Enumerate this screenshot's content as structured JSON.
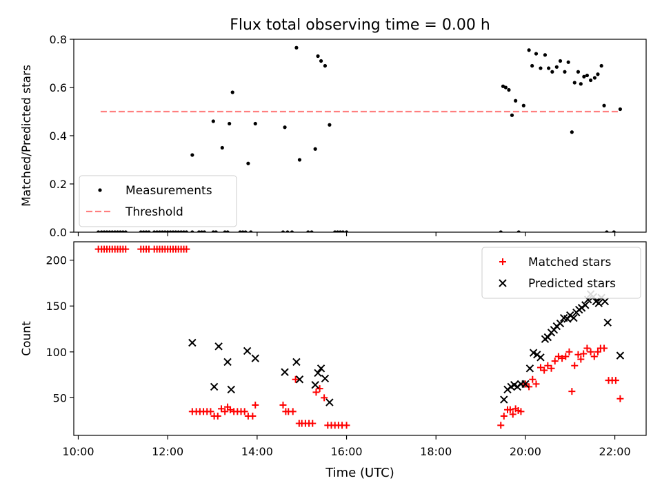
{
  "chart_data": {
    "title": "Flux total observing time = 0.00 h",
    "xlabel": "Time (UTC)",
    "xlim": [
      9.9,
      22.7
    ],
    "xticks": [
      {
        "v": 10,
        "label": "10:00"
      },
      {
        "v": 12,
        "label": "12:00"
      },
      {
        "v": 14,
        "label": "14:00"
      },
      {
        "v": 16,
        "label": "16:00"
      },
      {
        "v": 18,
        "label": "18:00"
      },
      {
        "v": 20,
        "label": "20:00"
      },
      {
        "v": 22,
        "label": "22:00"
      }
    ],
    "panels": [
      {
        "type": "scatter",
        "ylabel": "Matched/Predicted stars",
        "ylim": [
          0,
          0.8
        ],
        "yticks": [
          {
            "v": 0,
            "label": "0.0"
          },
          {
            "v": 0.2,
            "label": "0.2"
          },
          {
            "v": 0.4,
            "label": "0.4"
          },
          {
            "v": 0.6,
            "label": "0.6"
          },
          {
            "v": 0.8,
            "label": "0.8"
          }
        ],
        "legend_position": "lower-left",
        "series": [
          {
            "name": "Measurements",
            "marker": "dot",
            "color": "#000000",
            "x": [
              10.45,
              10.52,
              10.58,
              10.64,
              10.7,
              10.76,
              10.82,
              10.88,
              10.94,
              11.0,
              11.06,
              11.4,
              11.46,
              11.52,
              11.58,
              11.7,
              11.76,
              11.82,
              11.88,
              11.94,
              12.0,
              12.06,
              12.12,
              12.18,
              12.24,
              12.3,
              12.36,
              12.42,
              12.55,
              12.7,
              12.76,
              12.82,
              13.02,
              13.08,
              13.28,
              13.34,
              13.62,
              13.68,
              13.74,
              13.86,
              14.58,
              14.68,
              14.78,
              15.14,
              15.22,
              15.74,
              15.8,
              15.86,
              15.92,
              16.0,
              12.55,
              13.02,
              13.22,
              13.38,
              13.45,
              13.8,
              13.96,
              14.62,
              14.88,
              14.95,
              15.3,
              15.36,
              15.43,
              15.52,
              15.62,
              19.45,
              19.5,
              19.56,
              19.63,
              19.7,
              19.78,
              19.85,
              19.96,
              20.08,
              20.15,
              20.24,
              20.34,
              20.44,
              20.52,
              20.6,
              20.7,
              20.78,
              20.88,
              20.96,
              21.04,
              21.1,
              21.18,
              21.24,
              21.31,
              21.38,
              21.46,
              21.55,
              21.62,
              21.7,
              21.76,
              21.82,
              21.98,
              22.12
            ],
            "y": [
              0,
              0,
              0,
              0,
              0,
              0,
              0,
              0,
              0,
              0,
              0,
              0,
              0,
              0,
              0,
              0,
              0,
              0,
              0,
              0,
              0,
              0,
              0,
              0,
              0,
              0,
              0,
              0,
              0,
              0,
              0,
              0,
              0,
              0,
              0,
              0,
              0,
              0,
              0,
              0,
              0,
              0,
              0,
              0,
              0,
              0,
              0,
              0,
              0,
              0,
              0.32,
              0.46,
              0.35,
              0.45,
              0.58,
              0.285,
              0.45,
              0.435,
              0.765,
              0.3,
              0.345,
              0.73,
              0.71,
              0.69,
              0.445,
              0.0,
              0.605,
              0.6,
              0.59,
              0.485,
              0.545,
              0.0,
              0.525,
              0.755,
              0.69,
              0.74,
              0.68,
              0.735,
              0.68,
              0.665,
              0.685,
              0.71,
              0.665,
              0.705,
              0.415,
              0.62,
              0.665,
              0.615,
              0.645,
              0.65,
              0.63,
              0.64,
              0.655,
              0.69,
              0.525,
              0.0,
              0.0,
              0.51
            ]
          },
          {
            "name": "Threshold",
            "type": "line",
            "style": "dashed",
            "color": "#ff7f7f",
            "x": [
              10.5,
              22.1
            ],
            "y": [
              0.5,
              0.5
            ]
          }
        ]
      },
      {
        "type": "scatter",
        "ylabel": "Count",
        "ylim": [
          9,
          220
        ],
        "yticks": [
          {
            "v": 50,
            "label": "50"
          },
          {
            "v": 100,
            "label": "100"
          },
          {
            "v": 150,
            "label": "150"
          },
          {
            "v": 200,
            "label": "200"
          }
        ],
        "legend_position": "top-right",
        "series": [
          {
            "name": "Matched stars",
            "marker": "plus",
            "color": "#ff0000",
            "x": [
              10.45,
              10.52,
              10.58,
              10.64,
              10.7,
              10.76,
              10.82,
              10.88,
              10.94,
              11.0,
              11.06,
              11.4,
              11.46,
              11.52,
              11.58,
              11.7,
              11.76,
              11.82,
              11.88,
              11.94,
              12.0,
              12.06,
              12.12,
              12.18,
              12.24,
              12.3,
              12.36,
              12.42,
              12.55,
              12.64,
              12.72,
              12.8,
              12.88,
              12.96,
              13.04,
              13.12,
              13.2,
              13.28,
              13.34,
              13.4,
              13.48,
              13.56,
              13.64,
              13.72,
              13.8,
              13.9,
              13.96,
              14.58,
              14.64,
              14.7,
              14.8,
              14.86,
              14.94,
              15.0,
              15.08,
              15.16,
              15.24,
              15.32,
              15.4,
              15.5,
              15.58,
              15.66,
              15.74,
              15.82,
              15.9,
              16.0,
              19.45,
              19.52,
              19.6,
              19.66,
              19.72,
              19.78,
              19.84,
              19.9,
              20.0,
              20.08,
              20.16,
              20.24,
              20.34,
              20.42,
              20.5,
              20.58,
              20.66,
              20.74,
              20.82,
              20.9,
              20.98,
              21.04,
              21.1,
              21.18,
              21.24,
              21.3,
              21.38,
              21.46,
              21.54,
              21.62,
              21.68,
              21.76,
              21.86,
              21.94,
              22.02,
              22.12
            ],
            "y": [
              212,
              212,
              212,
              212,
              212,
              212,
              212,
              212,
              212,
              212,
              212,
              212,
              212,
              212,
              212,
              212,
              212,
              212,
              212,
              212,
              212,
              212,
              212,
              212,
              212,
              212,
              212,
              212,
              35,
              35,
              35,
              35,
              35,
              35,
              30,
              30,
              38,
              35,
              40,
              37,
              35,
              35,
              35,
              35,
              30,
              30,
              42,
              42,
              35,
              35,
              35,
              70,
              22,
              22,
              22,
              22,
              22,
              56,
              60,
              50,
              20,
              20,
              20,
              20,
              20,
              20,
              20,
              30,
              37,
              37,
              32,
              38,
              36,
              35,
              65,
              62,
              70,
              65,
              83,
              80,
              85,
              82,
              90,
              95,
              93,
              95,
              100,
              57,
              85,
              97,
              92,
              98,
              104,
              100,
              95,
              100,
              104,
              104,
              69,
              69,
              69,
              49
            ]
          },
          {
            "name": "Predicted stars",
            "marker": "x",
            "color": "#000000",
            "x": [
              12.55,
              13.04,
              13.14,
              13.34,
              13.42,
              13.78,
              13.96,
              14.62,
              14.88,
              14.95,
              15.3,
              15.36,
              15.43,
              15.52,
              15.62,
              19.52,
              19.6,
              19.68,
              19.75,
              19.82,
              19.9,
              20.0,
              20.1,
              20.18,
              20.26,
              20.34,
              20.44,
              20.5,
              20.58,
              20.64,
              20.7,
              20.78,
              20.86,
              20.94,
              21.0,
              21.08,
              21.14,
              21.2,
              21.26,
              21.34,
              21.4,
              21.46,
              21.52,
              21.58,
              21.64,
              21.7,
              21.78,
              21.84,
              22.12
            ],
            "y": [
              110,
              62,
              106,
              89,
              59,
              101,
              93,
              78,
              89,
              70,
              64,
              77,
              82,
              71,
              45,
              48,
              59,
              62,
              64,
              62,
              65,
              65,
              82,
              99,
              97,
              94,
              114,
              116,
              121,
              124,
              128,
              131,
              137,
              136,
              140,
              137,
              143,
              146,
              148,
              151,
              157,
              163,
              160,
              155,
              153,
              159,
              155,
              132,
              96
            ]
          }
        ]
      }
    ]
  }
}
